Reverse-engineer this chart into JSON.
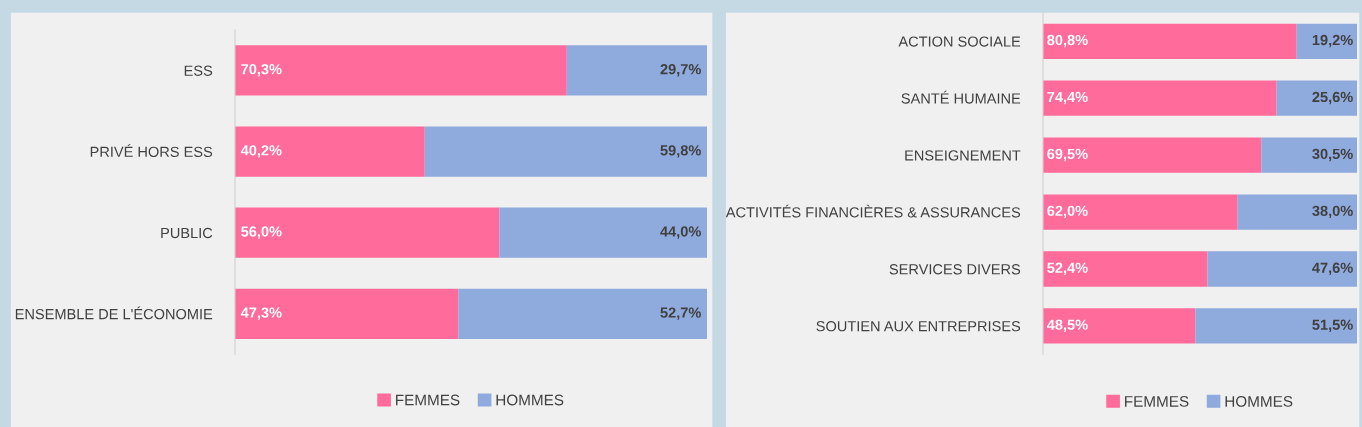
{
  "chart_data": [
    {
      "type": "bar",
      "orientation": "horizontal",
      "stacked": true,
      "legend": "bottom",
      "grid": false,
      "categories": [
        "ESS",
        "PRIVÉ HORS ESS",
        "PUBLIC",
        "ENSEMBLE DE L'ÉCONOMIE"
      ],
      "series": [
        {
          "name": "FEMMES",
          "color": "#ff6b9a",
          "values": [
            70.3,
            40.2,
            56.0,
            47.3
          ],
          "value_labels": [
            "70,3%",
            "40,2%",
            "56,0%",
            "47,3%"
          ]
        },
        {
          "name": "HOMMES",
          "color": "#8faadc",
          "values": [
            29.7,
            59.8,
            44.0,
            52.7
          ],
          "value_labels": [
            "29,7%",
            "59,8%",
            "44,0%",
            "52,7%"
          ]
        }
      ]
    },
    {
      "type": "bar",
      "orientation": "horizontal",
      "stacked": true,
      "legend": "bottom",
      "grid": false,
      "categories": [
        "ACTION SOCIALE",
        "SANTÉ HUMAINE",
        "ENSEIGNEMENT",
        "ACTIVITÉS FINANCIÈRES & ASSURANCES",
        "SERVICES DIVERS",
        "SOUTIEN AUX ENTREPRISES"
      ],
      "series": [
        {
          "name": "FEMMES",
          "color": "#ff6b9a",
          "values": [
            80.8,
            74.4,
            69.5,
            62.0,
            52.4,
            48.5
          ],
          "value_labels": [
            "80,8%",
            "74,4%",
            "69,5%",
            "62,0%",
            "52,4%",
            "48,5%"
          ]
        },
        {
          "name": "HOMMES",
          "color": "#8faadc",
          "values": [
            19.2,
            25.6,
            30.5,
            38.0,
            47.6,
            51.5
          ],
          "value_labels": [
            "19,2%",
            "25,6%",
            "30,5%",
            "38,0%",
            "47,6%",
            "51,5%"
          ]
        }
      ]
    }
  ]
}
